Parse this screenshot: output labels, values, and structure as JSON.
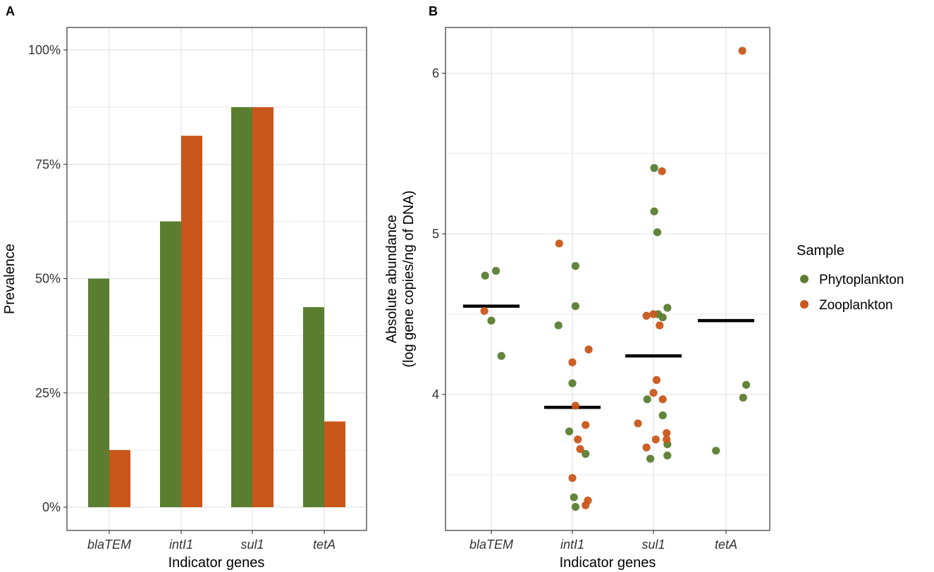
{
  "colors": {
    "phytoplankton": "#5a7d30",
    "zooplankton": "#c9561a",
    "grid": "#e3e3e3",
    "frame": "#333333",
    "median": "#000000"
  },
  "legend": {
    "title": "Sample",
    "items": [
      {
        "label": "Phytoplankton",
        "color_key": "phytoplankton"
      },
      {
        "label": "Zooplankton",
        "color_key": "zooplankton"
      }
    ]
  },
  "chart_data": [
    {
      "panel_label": "A",
      "type": "bar",
      "title": "",
      "xlabel": "Indicator genes",
      "ylabel": "Prevalence",
      "categories": [
        "blaTEM",
        "intI1",
        "sul1",
        "tetA"
      ],
      "ylim": [
        0,
        1.0
      ],
      "yticks": [
        0,
        0.25,
        0.5,
        0.75,
        1.0
      ],
      "ytick_labels": [
        "0%",
        "25%",
        "50%",
        "75%",
        "100%"
      ],
      "series": [
        {
          "name": "Phytoplankton",
          "color_key": "phytoplankton",
          "values": [
            0.5,
            0.625,
            0.875,
            0.4375
          ]
        },
        {
          "name": "Zooplankton",
          "color_key": "zooplankton",
          "values": [
            0.125,
            0.8125,
            0.875,
            0.1875
          ]
        }
      ]
    },
    {
      "panel_label": "B",
      "type": "scatter",
      "title": "",
      "xlabel": "Indicator genes",
      "ylabel_lines": [
        "Absolute abundance",
        "(log gene copies/ng of DNA)"
      ],
      "categories": [
        "blaTEM",
        "intI1",
        "sul1",
        "tetA"
      ],
      "ylim": [
        3.2,
        6.3
      ],
      "yticks": [
        4,
        5,
        6
      ],
      "ytick_labels": [
        "4",
        "5",
        "6"
      ],
      "medians": [
        4.55,
        3.92,
        4.24,
        4.46
      ],
      "points": [
        {
          "category": "blaTEM",
          "jitter": -0.08,
          "y": 4.74,
          "sample": "Phytoplankton"
        },
        {
          "category": "blaTEM",
          "jitter": 0.06,
          "y": 4.77,
          "sample": "Phytoplankton"
        },
        {
          "category": "blaTEM",
          "jitter": 0.0,
          "y": 4.46,
          "sample": "Phytoplankton"
        },
        {
          "category": "blaTEM",
          "jitter": 0.13,
          "y": 4.24,
          "sample": "Phytoplankton"
        },
        {
          "category": "blaTEM",
          "jitter": -0.09,
          "y": 4.52,
          "sample": "Zooplankton"
        },
        {
          "category": "intI1",
          "jitter": 0.04,
          "y": 4.8,
          "sample": "Phytoplankton"
        },
        {
          "category": "intI1",
          "jitter": 0.04,
          "y": 4.55,
          "sample": "Phytoplankton"
        },
        {
          "category": "intI1",
          "jitter": -0.18,
          "y": 4.43,
          "sample": "Phytoplankton"
        },
        {
          "category": "intI1",
          "jitter": 0.0,
          "y": 4.07,
          "sample": "Phytoplankton"
        },
        {
          "category": "intI1",
          "jitter": -0.04,
          "y": 3.77,
          "sample": "Phytoplankton"
        },
        {
          "category": "intI1",
          "jitter": 0.17,
          "y": 3.63,
          "sample": "Phytoplankton"
        },
        {
          "category": "intI1",
          "jitter": 0.02,
          "y": 3.36,
          "sample": "Phytoplankton"
        },
        {
          "category": "intI1",
          "jitter": 0.04,
          "y": 3.3,
          "sample": "Phytoplankton"
        },
        {
          "category": "intI1",
          "jitter": -0.17,
          "y": 4.94,
          "sample": "Zooplankton"
        },
        {
          "category": "intI1",
          "jitter": 0.21,
          "y": 4.28,
          "sample": "Zooplankton"
        },
        {
          "category": "intI1",
          "jitter": 0.0,
          "y": 4.2,
          "sample": "Zooplankton"
        },
        {
          "category": "intI1",
          "jitter": 0.04,
          "y": 3.93,
          "sample": "Zooplankton"
        },
        {
          "category": "intI1",
          "jitter": 0.17,
          "y": 3.81,
          "sample": "Zooplankton"
        },
        {
          "category": "intI1",
          "jitter": 0.07,
          "y": 3.72,
          "sample": "Zooplankton"
        },
        {
          "category": "intI1",
          "jitter": 0.1,
          "y": 3.66,
          "sample": "Zooplankton"
        },
        {
          "category": "intI1",
          "jitter": 0.0,
          "y": 3.48,
          "sample": "Zooplankton"
        },
        {
          "category": "intI1",
          "jitter": 0.2,
          "y": 3.34,
          "sample": "Zooplankton"
        },
        {
          "category": "intI1",
          "jitter": 0.17,
          "y": 3.31,
          "sample": "Zooplankton"
        },
        {
          "category": "sul1",
          "jitter": 0.01,
          "y": 5.41,
          "sample": "Phytoplankton"
        },
        {
          "category": "sul1",
          "jitter": 0.01,
          "y": 5.14,
          "sample": "Phytoplankton"
        },
        {
          "category": "sul1",
          "jitter": 0.05,
          "y": 5.01,
          "sample": "Phytoplankton"
        },
        {
          "category": "sul1",
          "jitter": 0.18,
          "y": 4.54,
          "sample": "Phytoplankton"
        },
        {
          "category": "sul1",
          "jitter": 0.06,
          "y": 4.5,
          "sample": "Phytoplankton"
        },
        {
          "category": "sul1",
          "jitter": 0.12,
          "y": 4.48,
          "sample": "Phytoplankton"
        },
        {
          "category": "sul1",
          "jitter": -0.08,
          "y": 3.97,
          "sample": "Phytoplankton"
        },
        {
          "category": "sul1",
          "jitter": 0.12,
          "y": 3.87,
          "sample": "Phytoplankton"
        },
        {
          "category": "sul1",
          "jitter": 0.18,
          "y": 3.69,
          "sample": "Phytoplankton"
        },
        {
          "category": "sul1",
          "jitter": 0.18,
          "y": 3.62,
          "sample": "Phytoplankton"
        },
        {
          "category": "sul1",
          "jitter": -0.04,
          "y": 3.6,
          "sample": "Phytoplankton"
        },
        {
          "category": "sul1",
          "jitter": 0.11,
          "y": 5.39,
          "sample": "Zooplankton"
        },
        {
          "category": "sul1",
          "jitter": -0.09,
          "y": 4.49,
          "sample": "Zooplankton"
        },
        {
          "category": "sul1",
          "jitter": 0.0,
          "y": 4.5,
          "sample": "Zooplankton"
        },
        {
          "category": "sul1",
          "jitter": 0.08,
          "y": 4.43,
          "sample": "Zooplankton"
        },
        {
          "category": "sul1",
          "jitter": 0.04,
          "y": 4.09,
          "sample": "Zooplankton"
        },
        {
          "category": "sul1",
          "jitter": 0.0,
          "y": 4.01,
          "sample": "Zooplankton"
        },
        {
          "category": "sul1",
          "jitter": 0.12,
          "y": 3.97,
          "sample": "Zooplankton"
        },
        {
          "category": "sul1",
          "jitter": -0.2,
          "y": 3.82,
          "sample": "Zooplankton"
        },
        {
          "category": "sul1",
          "jitter": 0.17,
          "y": 3.76,
          "sample": "Zooplankton"
        },
        {
          "category": "sul1",
          "jitter": 0.03,
          "y": 3.72,
          "sample": "Zooplankton"
        },
        {
          "category": "sul1",
          "jitter": 0.17,
          "y": 3.72,
          "sample": "Zooplankton"
        },
        {
          "category": "sul1",
          "jitter": -0.09,
          "y": 3.67,
          "sample": "Zooplankton"
        },
        {
          "category": "tetA",
          "jitter": 0.26,
          "y": 4.06,
          "sample": "Phytoplankton"
        },
        {
          "category": "tetA",
          "jitter": 0.22,
          "y": 3.98,
          "sample": "Phytoplankton"
        },
        {
          "category": "tetA",
          "jitter": -0.13,
          "y": 3.65,
          "sample": "Phytoplankton"
        },
        {
          "category": "tetA",
          "jitter": 0.21,
          "y": 6.14,
          "sample": "Zooplankton"
        }
      ]
    }
  ]
}
